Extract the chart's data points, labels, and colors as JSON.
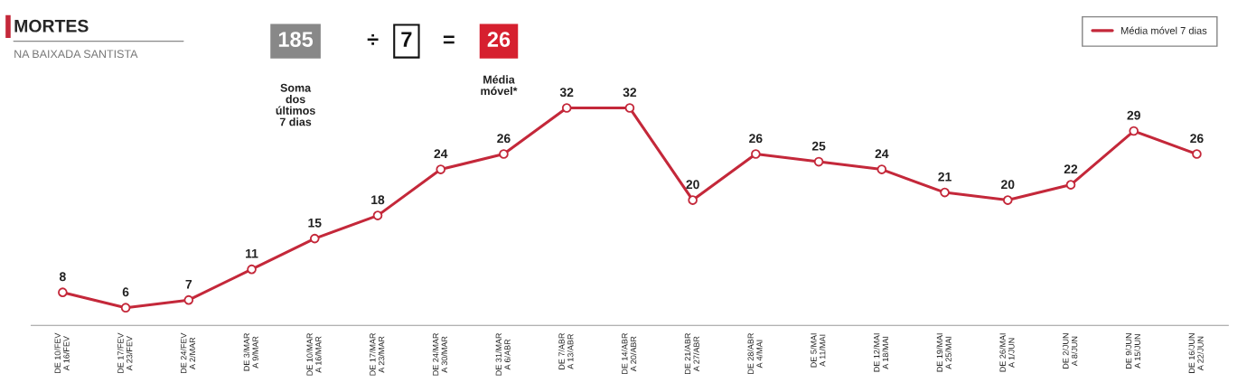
{
  "chart_data": {
    "type": "line",
    "title": "MORTES",
    "subtitle": "NA BAIXADA SANTISTA",
    "annotations": [
      "185",
      "÷",
      "7",
      "=",
      "26",
      "Soma\ndos\núltimos\n7 dias",
      "Média\nmóvel*"
    ],
    "categories": [
      "DE 10/FEV\nA 16/FEV",
      "DE 17/FEV\nA 23/FEV",
      "DE 24/FEV\nA 2/MAR",
      "DE 3/MAR\nA 9/MAR",
      "DE 10/MAR\nA 16/MAR",
      "DE 17/MAR\nA 23/MAR",
      "DE 24/MAR\nA 30/MAR",
      "DE 31/MAR\nA 6/ABR",
      "DE 7/ABR\nA 13/ABR",
      "DE 14/ABR\nA 20/ABR",
      "DE 21/ABR\nA 27/ABR",
      "DE 28/ABR\nA 4/MAI",
      "DE 5/MAI\nA 11/MAI",
      "DE 12/MAI\nA 18/MAI",
      "DE 19/MAI\nA 25/MAI",
      "DE 26/MAI\nA 1/JUN",
      "DE 2/JUN\nA 8/JUN",
      "DE 9/JUN\nA 15/JUN",
      "DE 16/JUN\nA 22/JUN"
    ],
    "series": [
      {
        "name": "Média móvel 7 dias",
        "color": "#c4283a",
        "values": [
          8,
          6,
          7,
          11,
          15,
          18,
          24,
          26,
          32,
          32,
          20,
          26,
          25,
          24,
          21,
          20,
          22,
          29,
          26
        ]
      }
    ],
    "data_labels": true,
    "marker": "circle",
    "line_style": "solid",
    "grid": false,
    "legend": "top right"
  }
}
